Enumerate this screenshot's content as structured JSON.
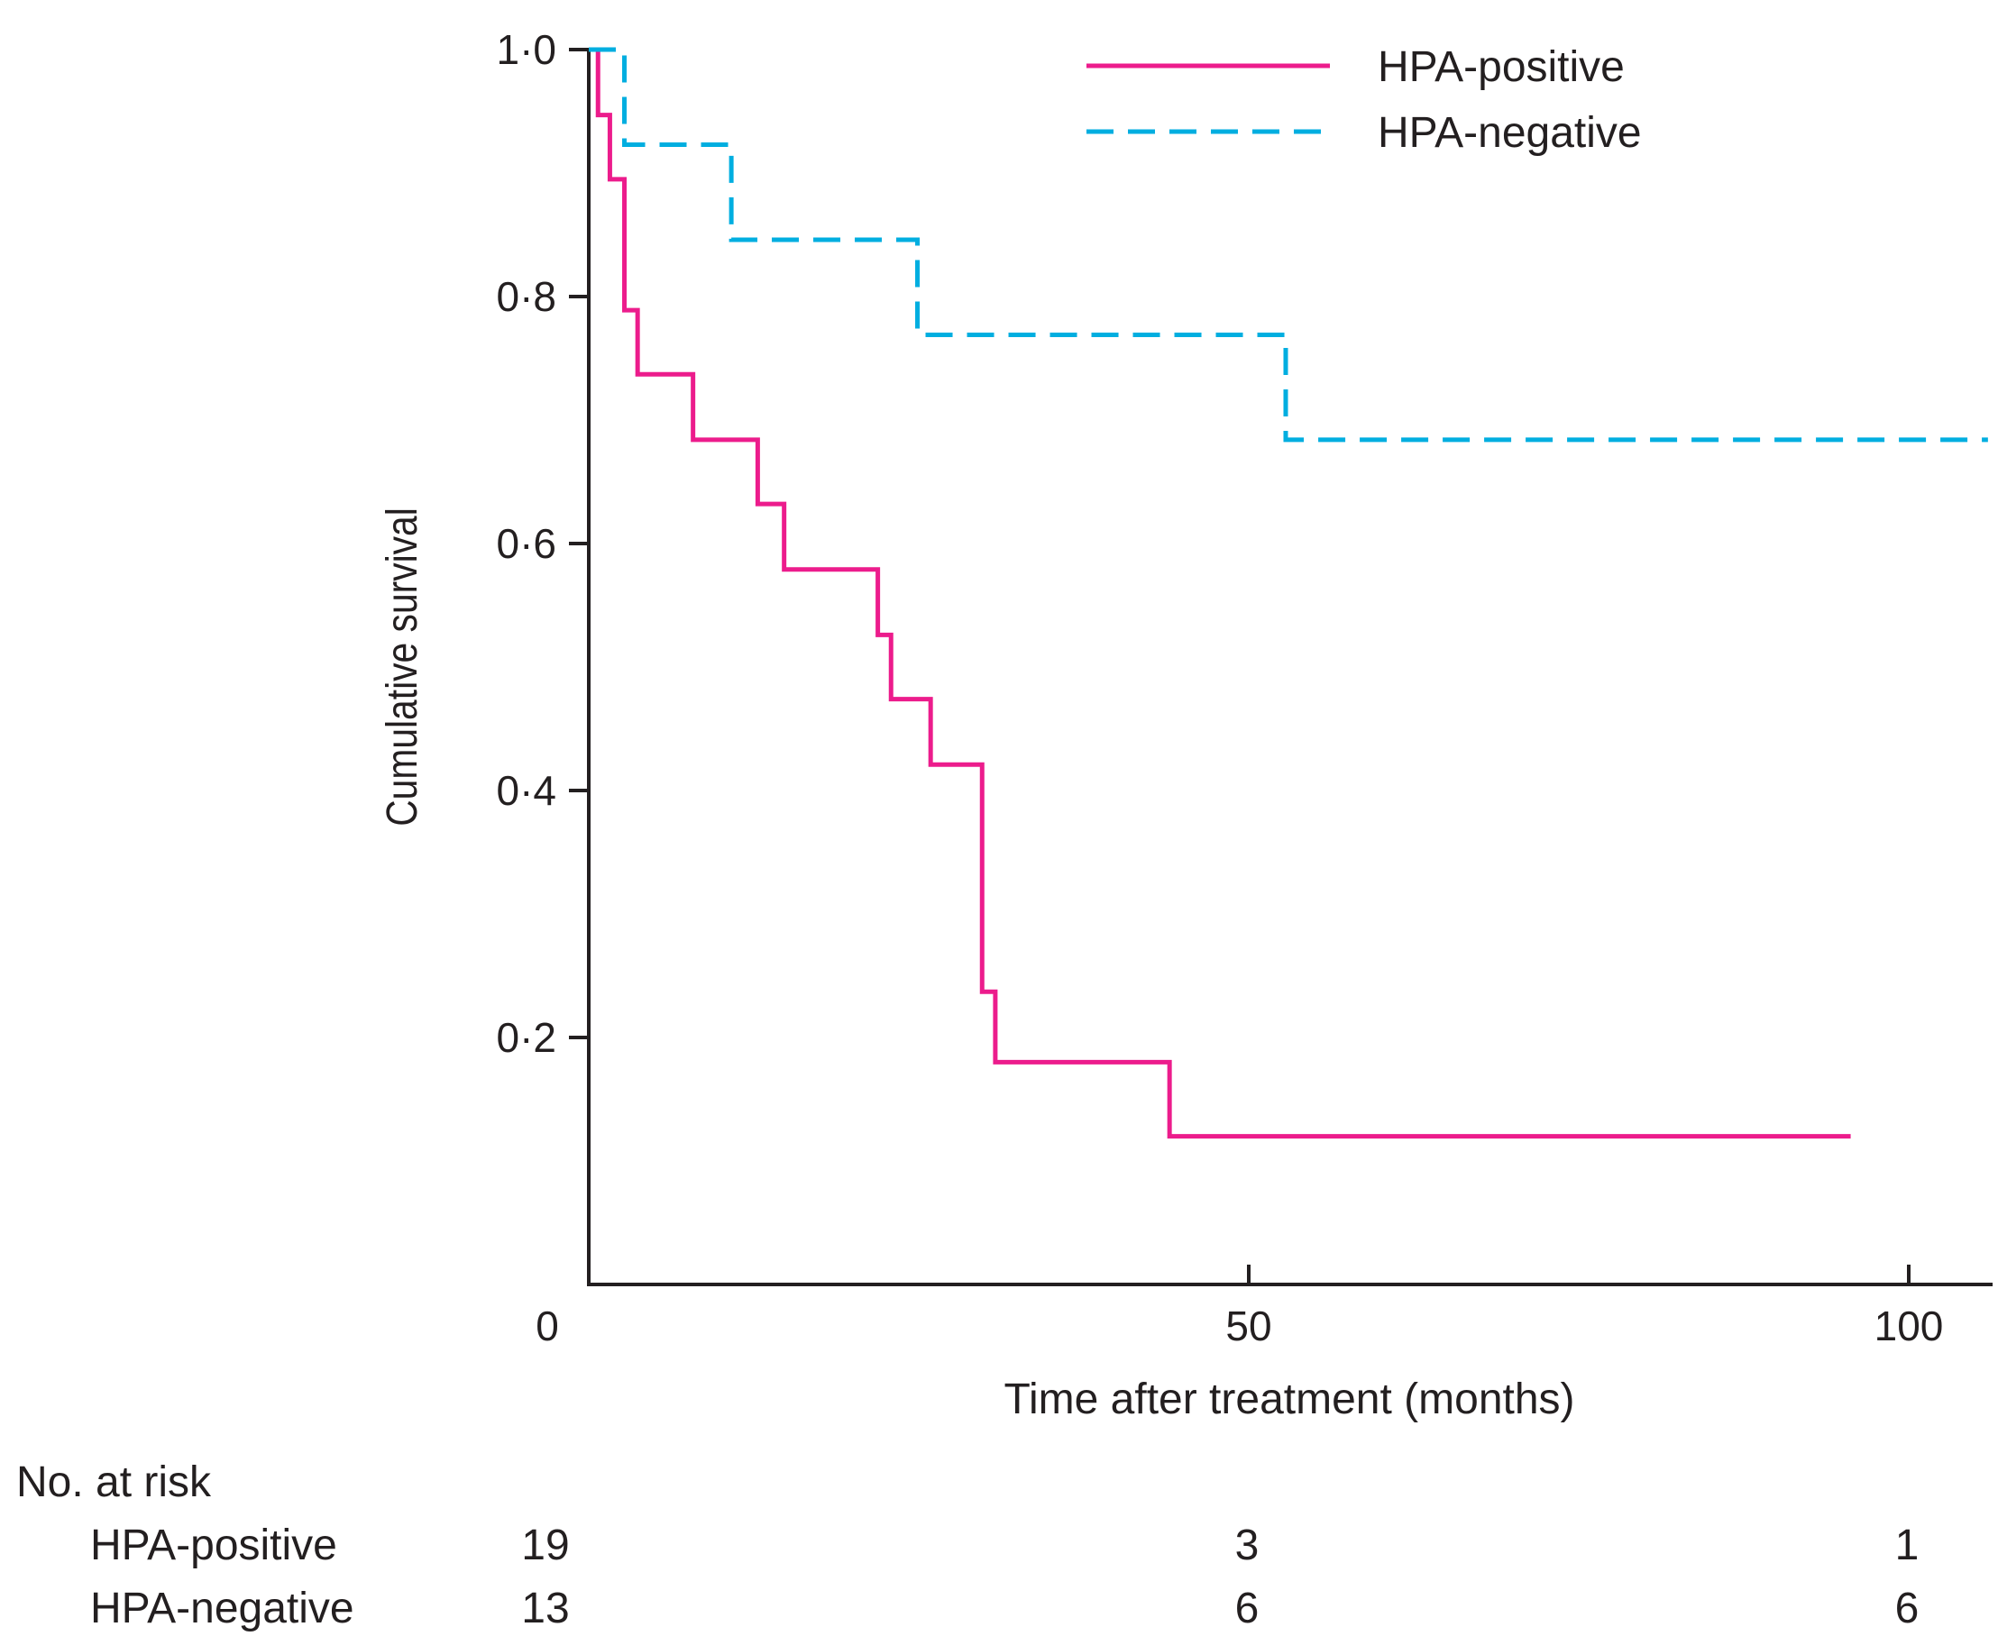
{
  "chart_data": {
    "type": "line",
    "subtype": "kaplan-meier-step",
    "xlabel": "Time after treatment (months)",
    "ylabel": "Cumulative survival",
    "xlim": [
      0,
      105
    ],
    "ylim": [
      0,
      1.0
    ],
    "x_ticks": [
      0,
      50,
      100
    ],
    "x_tick_labels": [
      "0",
      "50",
      "100"
    ],
    "y_ticks": [
      0.2,
      0.4,
      0.6,
      0.8,
      1.0
    ],
    "y_tick_labels": [
      "0·2",
      "0·4",
      "0·6",
      "0·8",
      "1·0"
    ],
    "legend_position": "top-right",
    "grid": false,
    "series": [
      {
        "name": "HPA-positive",
        "color": "#ec1c8c",
        "style": "solid",
        "steps": [
          [
            0,
            1.0
          ],
          [
            0.7,
            0.947
          ],
          [
            1.6,
            0.895
          ],
          [
            2.7,
            0.789
          ],
          [
            3.7,
            0.737
          ],
          [
            7.9,
            0.684
          ],
          [
            12.8,
            0.632
          ],
          [
            14.8,
            0.579
          ],
          [
            21.9,
            0.526
          ],
          [
            22.9,
            0.474
          ],
          [
            25.9,
            0.421
          ],
          [
            29.8,
            0.237
          ],
          [
            30.8,
            0.18
          ],
          [
            44.0,
            0.12
          ],
          [
            95.6,
            0.12
          ]
        ]
      },
      {
        "name": "HPA-negative",
        "color": "#00aee0",
        "style": "dashed",
        "steps": [
          [
            0,
            1.0
          ],
          [
            2.7,
            0.923
          ],
          [
            10.8,
            0.846
          ],
          [
            24.9,
            0.769
          ],
          [
            52.8,
            0.684
          ],
          [
            106,
            0.684
          ]
        ]
      }
    ],
    "risk_table": {
      "title": "No. at risk",
      "times": [
        0,
        50,
        100
      ],
      "rows": [
        {
          "name": "HPA-positive",
          "values": [
            "19",
            "3",
            "1"
          ]
        },
        {
          "name": "HPA-negative",
          "values": [
            "13",
            "6",
            "6"
          ]
        }
      ]
    }
  }
}
